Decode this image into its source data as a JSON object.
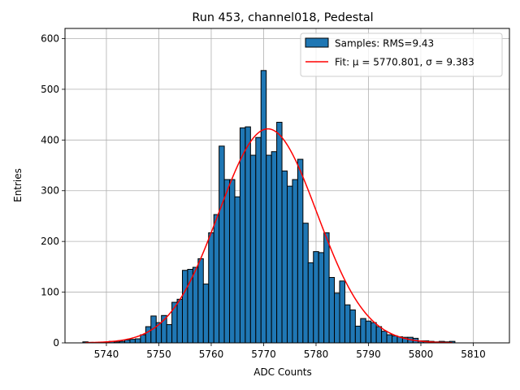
{
  "chart_data": {
    "type": "bar",
    "title": "Run 453, channel018, Pedestal",
    "xlabel": "ADC Counts",
    "ylabel": "Entries",
    "xlim": [
      5732.1,
      5816.9
    ],
    "ylim": [
      0,
      620
    ],
    "grid": true,
    "legend_position": "upper-right",
    "x_ticks": [
      5740,
      5750,
      5760,
      5770,
      5780,
      5790,
      5800,
      5810
    ],
    "y_ticks": [
      0,
      100,
      200,
      300,
      400,
      500,
      600
    ],
    "bin_width": 1,
    "bin_centers": [
      5736,
      5737,
      5738,
      5739,
      5740,
      5741,
      5742,
      5743,
      5744,
      5745,
      5746,
      5747,
      5748,
      5749,
      5750,
      5751,
      5752,
      5753,
      5754,
      5755,
      5756,
      5757,
      5758,
      5759,
      5760,
      5761,
      5762,
      5763,
      5764,
      5765,
      5766,
      5767,
      5768,
      5769,
      5770,
      5771,
      5772,
      5773,
      5774,
      5775,
      5776,
      5777,
      5778,
      5779,
      5780,
      5781,
      5782,
      5783,
      5784,
      5785,
      5786,
      5787,
      5788,
      5789,
      5790,
      5791,
      5792,
      5793,
      5794,
      5795,
      5796,
      5797,
      5798,
      5799,
      5800,
      5801,
      5802,
      5803,
      5804,
      5805,
      5806
    ],
    "series": [
      {
        "name": "Samples: RMS=9.43",
        "kind": "histogram",
        "color": "#1f77b4",
        "edgecolor": "#000000",
        "values": [
          2,
          1,
          0,
          0,
          1,
          3,
          2,
          3,
          6,
          7,
          8,
          16,
          32,
          53,
          40,
          54,
          36,
          80,
          86,
          143,
          145,
          149,
          166,
          116,
          217,
          253,
          388,
          322,
          322,
          288,
          424,
          426,
          370,
          405,
          537,
          370,
          377,
          435,
          339,
          309,
          322,
          362,
          236,
          158,
          180,
          178,
          217,
          129,
          98,
          122,
          75,
          65,
          33,
          48,
          43,
          40,
          32,
          23,
          16,
          14,
          12,
          11,
          11,
          9,
          4,
          4,
          3,
          2,
          3,
          2,
          3
        ]
      },
      {
        "name": "Fit: μ = 5770.801, σ = 9.383",
        "kind": "gaussian-fit",
        "color": "#ff0000",
        "mu": 5770.801,
        "sigma": 9.383,
        "amplitude": 422,
        "x_range": [
          5736,
          5806
        ]
      }
    ]
  }
}
